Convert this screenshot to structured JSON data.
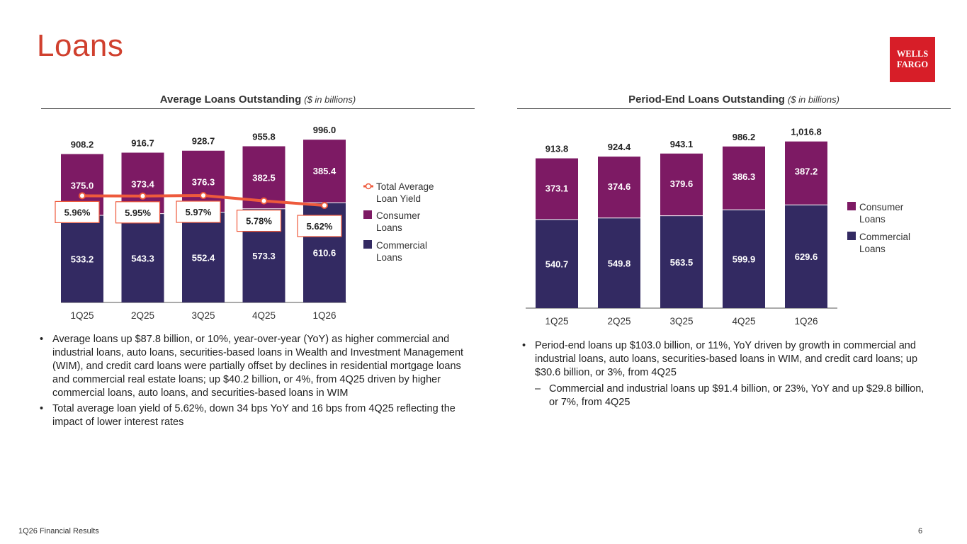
{
  "page": {
    "title": "Loans",
    "footer": "1Q26 Financial Results",
    "page_number": "6"
  },
  "logo": {
    "line1": "WELLS",
    "line2": "FARGO"
  },
  "colors": {
    "consumer": "#7d1a64",
    "commercial": "#332a62",
    "yield_line": "#ee5a3c",
    "title": "#d0402e"
  },
  "left": {
    "heading": "Average Loans Outstanding",
    "heading_unit": "($ in billions)",
    "bullets": [
      "Average loans up $87.8 billion, or 10%, year-over-year (YoY) as higher commercial and industrial loans, auto loans, securities-based loans in Wealth and Investment Management (WIM), and credit card loans were partially offset by declines in residential mortgage loans and commercial real estate loans; up $40.2 billion, or 4%, from 4Q25 driven by higher commercial loans, auto loans, and securities-based loans in WIM",
      "Total average loan yield of 5.62%, down 34 bps YoY and 16 bps from 4Q25 reflecting the impact of lower interest rates"
    ]
  },
  "right": {
    "heading": "Period-End Loans Outstanding",
    "heading_unit": "($ in billions)",
    "bullets": [
      "Period-end loans up $103.0 billion, or 11%, YoY driven by growth in commercial and industrial loans, auto loans, securities-based loans in WIM, and credit card loans; up $30.6 billion, or 3%, from 4Q25"
    ],
    "sub_bullets": [
      "Commercial and industrial loans up $91.4 billion, or 23%, YoY and up $29.8 billion, or 7%, from 4Q25"
    ]
  },
  "chart_data": [
    {
      "type": "bar",
      "stacked": true,
      "title": "Average Loans Outstanding ($ in billions)",
      "categories": [
        "1Q25",
        "2Q25",
        "3Q25",
        "4Q25",
        "1Q26"
      ],
      "series": [
        {
          "name": "Commercial Loans",
          "values": [
            533.2,
            543.3,
            552.4,
            573.3,
            610.6
          ]
        },
        {
          "name": "Consumer Loans",
          "values": [
            375.0,
            373.4,
            376.3,
            382.5,
            385.4
          ]
        }
      ],
      "totals": [
        908.2,
        916.7,
        928.7,
        955.8,
        996.0
      ],
      "totals_labels": [
        "908.2",
        "916.7",
        "928.7",
        "955.8",
        "996.0"
      ],
      "commercial_labels": [
        "533.2",
        "543.3",
        "552.4",
        "573.3",
        "610.6"
      ],
      "consumer_labels": [
        "375.0",
        "373.4",
        "376.3",
        "382.5",
        "385.4"
      ],
      "line_series": {
        "name": "Total Average Loan Yield",
        "values": [
          5.96,
          5.95,
          5.97,
          5.78,
          5.62
        ],
        "labels": [
          "5.96%",
          "5.95%",
          "5.97%",
          "5.78%",
          "5.62%"
        ]
      },
      "legend": [
        "Total Average Loan Yield",
        "Consumer Loans",
        "Commercial Loans"
      ],
      "legend_position": "right"
    },
    {
      "type": "bar",
      "stacked": true,
      "title": "Period-End Loans Outstanding ($ in billions)",
      "categories": [
        "1Q25",
        "2Q25",
        "3Q25",
        "4Q25",
        "1Q26"
      ],
      "series": [
        {
          "name": "Commercial Loans",
          "values": [
            540.7,
            549.8,
            563.5,
            599.9,
            629.6
          ]
        },
        {
          "name": "Consumer Loans",
          "values": [
            373.1,
            374.6,
            379.6,
            386.3,
            387.2
          ]
        }
      ],
      "totals": [
        913.8,
        924.4,
        943.1,
        986.2,
        1016.8
      ],
      "totals_labels": [
        "913.8",
        "924.4",
        "943.1",
        "986.2",
        "1,016.8"
      ],
      "commercial_labels": [
        "540.7",
        "549.8",
        "563.5",
        "599.9",
        "629.6"
      ],
      "consumer_labels": [
        "373.1",
        "374.6",
        "379.6",
        "386.3",
        "387.2"
      ],
      "legend": [
        "Consumer Loans",
        "Commercial Loans"
      ],
      "legend_position": "right"
    }
  ]
}
